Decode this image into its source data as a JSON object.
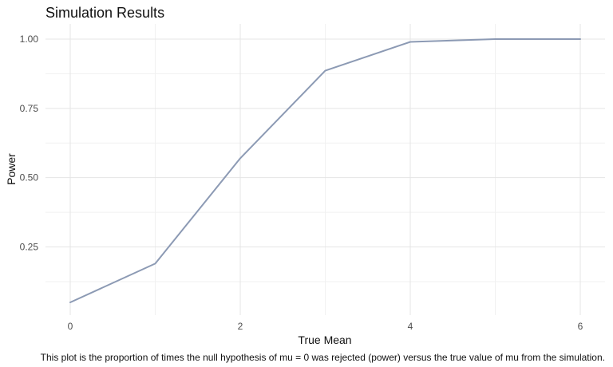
{
  "chart_data": {
    "type": "line",
    "title": "Simulation Results",
    "xlabel": "True Mean",
    "ylabel": "Power",
    "caption": "This plot is the proportion of times the null hypothesis of mu = 0 was rejected (power) versus the true value of mu from the simulation.",
    "x": [
      0,
      1,
      2,
      3,
      4,
      5,
      6
    ],
    "values": [
      0.05,
      0.19,
      0.57,
      0.886,
      0.99,
      1.0,
      1.0
    ],
    "xlim": [
      0,
      6
    ],
    "ylim": [
      0.05,
      1.0
    ],
    "x_ticks": [
      0,
      2,
      4,
      6
    ],
    "x_tick_labels": [
      "0",
      "2",
      "4",
      "6"
    ],
    "y_ticks": [
      0.25,
      0.5,
      0.75,
      1.0
    ],
    "y_tick_labels": [
      "0.25",
      "0.50",
      "0.75",
      "1.00"
    ],
    "grid": true,
    "colors": {
      "line": "#8c9ab4",
      "grid": "#e5e5e5"
    }
  }
}
